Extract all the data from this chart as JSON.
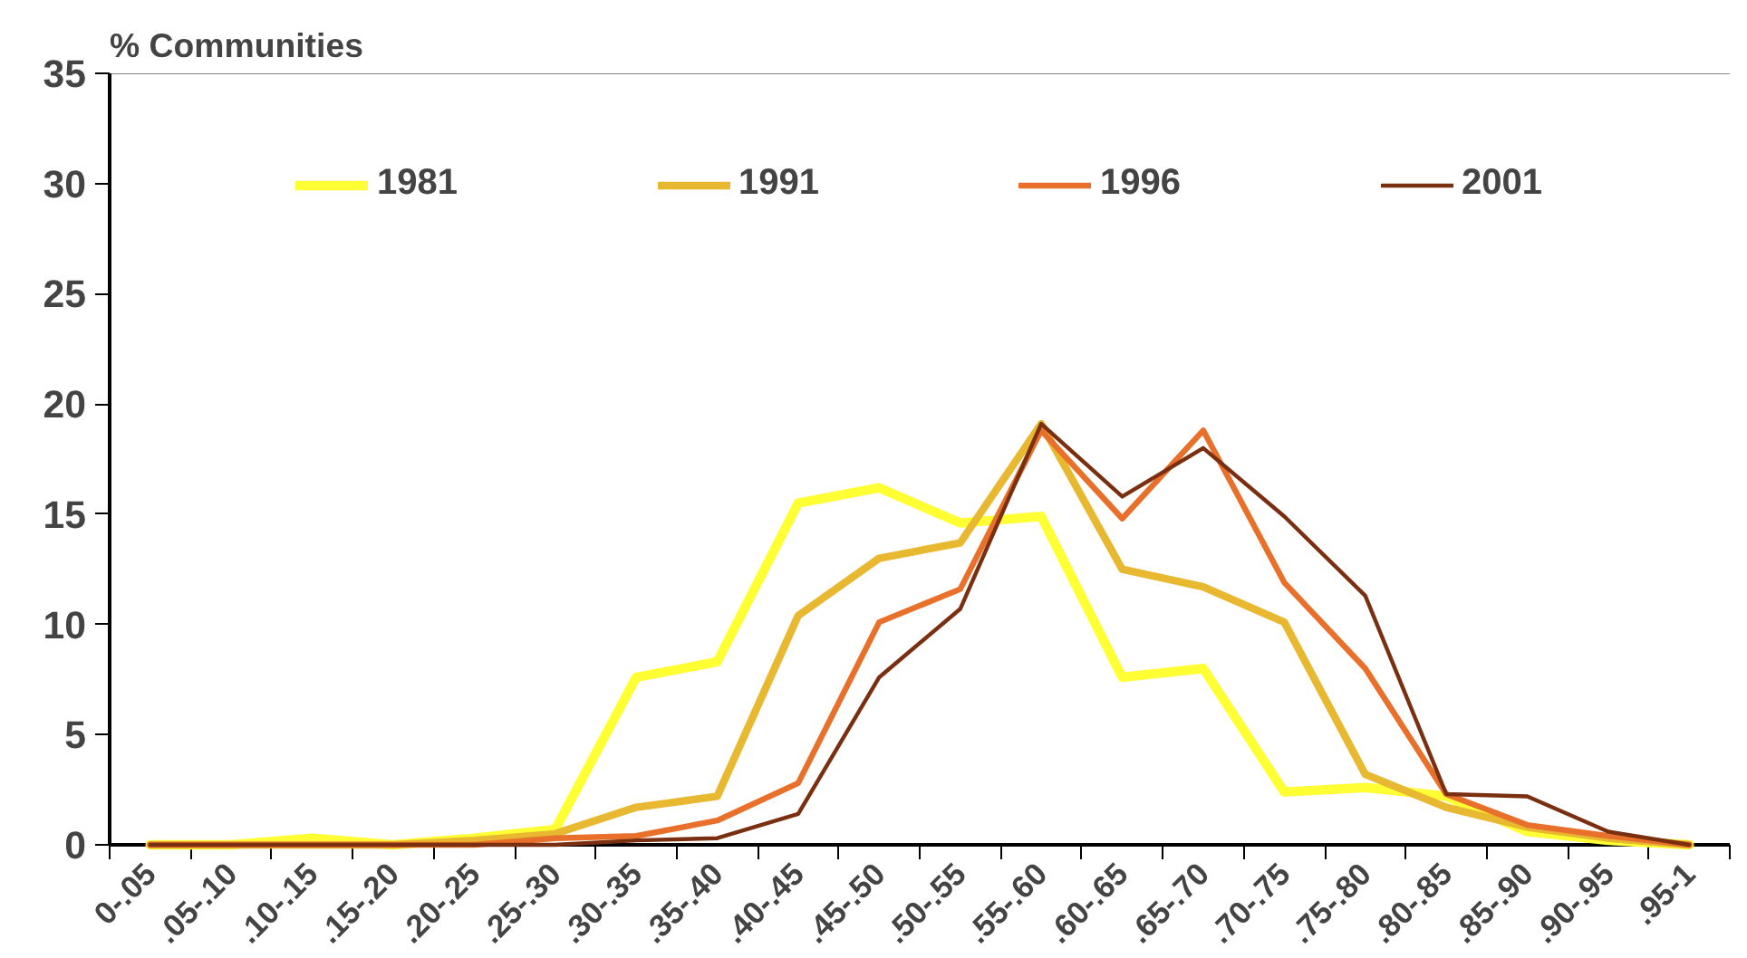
{
  "chart_data": {
    "type": "line",
    "ylabel": "% Communities",
    "categories": [
      "0-.05",
      ".05-.10",
      ".10-.15",
      ".15-.20",
      ".20-.25",
      ".25-.30",
      ".30-.35",
      ".35-.40",
      ".40-.45",
      ".45-.50",
      ".50-.55",
      ".55-.60",
      ".60-.65",
      ".65-.70",
      ".70-.75",
      ".75-.80",
      ".80-.85",
      ".85-.90",
      ".90-.95",
      ".95-1"
    ],
    "series": [
      {
        "name": "1981",
        "color": "#ffff33",
        "values": [
          0,
          0,
          0.3,
          0,
          0.3,
          0.7,
          7.6,
          8.3,
          15.5,
          16.2,
          14.6,
          14.9,
          7.6,
          8.0,
          2.4,
          2.6,
          2.2,
          0.6,
          0.2,
          0
        ]
      },
      {
        "name": "1991",
        "color": "#e8b830",
        "values": [
          0,
          0,
          0,
          0,
          0.2,
          0.5,
          1.7,
          2.2,
          10.4,
          13.0,
          13.7,
          19.1,
          12.5,
          11.7,
          10.1,
          3.2,
          1.7,
          0.8,
          0.3,
          0
        ]
      },
      {
        "name": "1996",
        "color": "#e8702a",
        "values": [
          0,
          0,
          0,
          0,
          0,
          0.3,
          0.4,
          1.1,
          2.8,
          10.1,
          11.6,
          18.8,
          14.8,
          18.8,
          11.9,
          8.0,
          2.3,
          0.9,
          0.4,
          0
        ]
      },
      {
        "name": "2001",
        "color": "#7a3010",
        "values": [
          0,
          0,
          0,
          0,
          0,
          0,
          0.2,
          0.3,
          1.4,
          7.6,
          10.7,
          19.1,
          15.8,
          18.0,
          14.9,
          11.3,
          2.3,
          2.2,
          0.6,
          0
        ]
      }
    ],
    "ylim": [
      0,
      35
    ],
    "yticks": [
      0,
      5,
      10,
      15,
      20,
      25,
      30,
      35
    ],
    "grid": false,
    "legend": "top"
  }
}
